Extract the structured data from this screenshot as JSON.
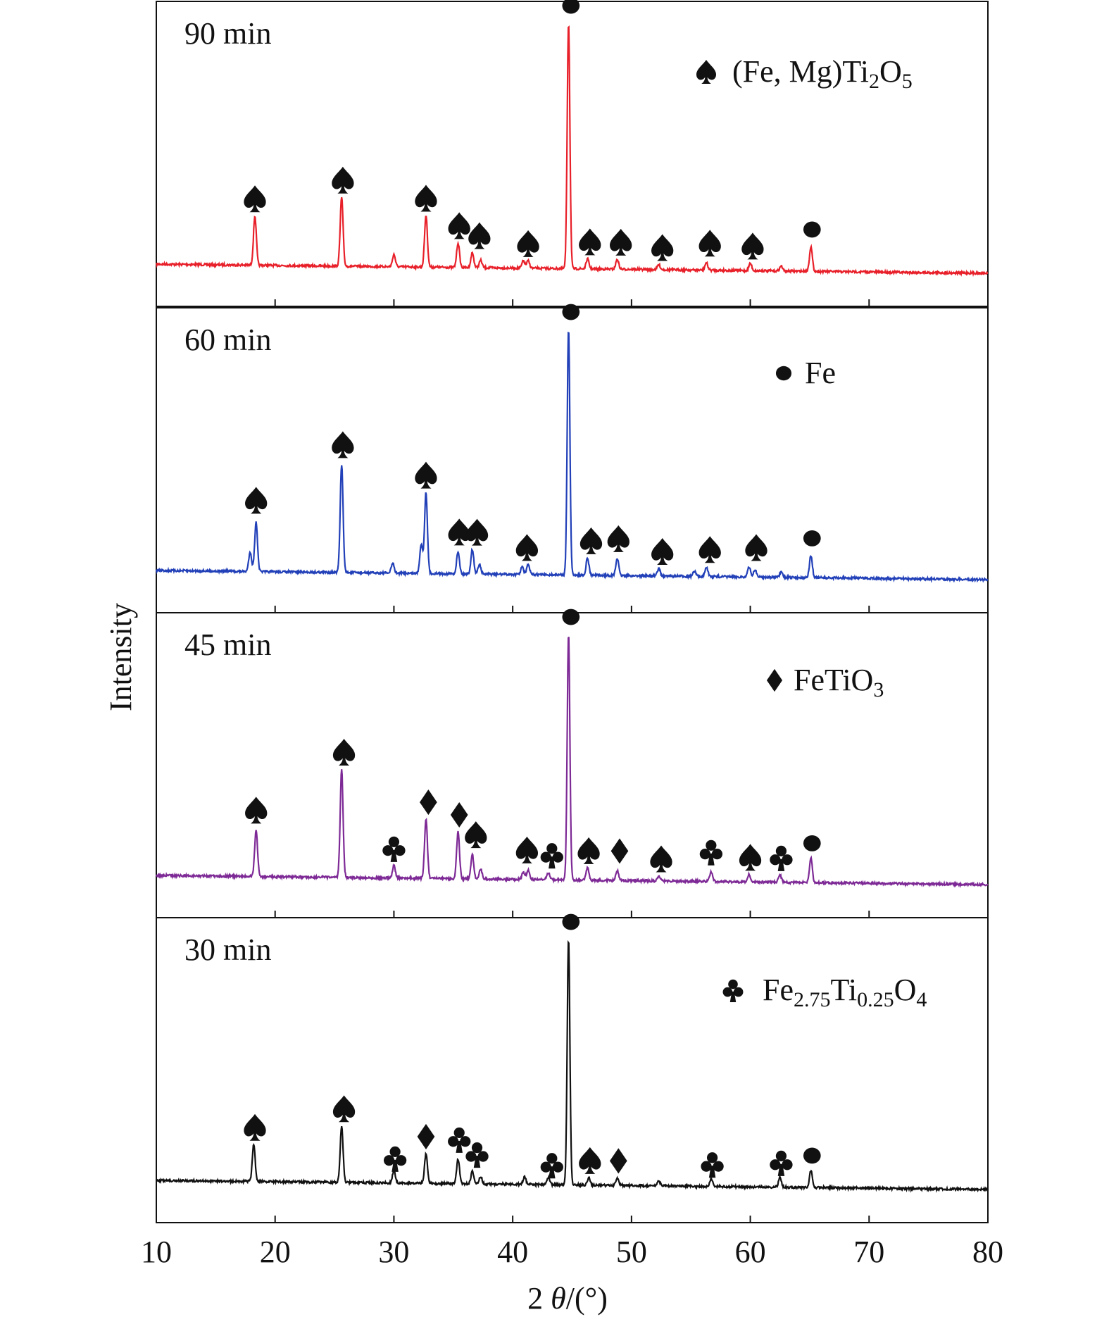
{
  "chart_data": {
    "type": "line",
    "xlabel": "2θ/(°)",
    "ylabel": "Intensity",
    "xlim": [
      10,
      80
    ],
    "xticks": [
      "10",
      "20",
      "30",
      "40",
      "50",
      "60",
      "70",
      "80"
    ],
    "grid": false,
    "panels": [
      {
        "label": "90 min",
        "color": "#e8202a",
        "peaks": [
          {
            "x": 18.3,
            "h": 0.2
          },
          {
            "x": 25.6,
            "h": 0.28
          },
          {
            "x": 30.0,
            "h": 0.05
          },
          {
            "x": 32.7,
            "h": 0.21
          },
          {
            "x": 35.4,
            "h": 0.1
          },
          {
            "x": 36.6,
            "h": 0.06
          },
          {
            "x": 37.3,
            "h": 0.03
          },
          {
            "x": 40.9,
            "h": 0.03
          },
          {
            "x": 41.3,
            "h": 0.03
          },
          {
            "x": 44.7,
            "h": 1.0
          },
          {
            "x": 46.3,
            "h": 0.04
          },
          {
            "x": 48.8,
            "h": 0.04
          },
          {
            "x": 52.3,
            "h": 0.02
          },
          {
            "x": 56.3,
            "h": 0.03
          },
          {
            "x": 60.0,
            "h": 0.03
          },
          {
            "x": 62.6,
            "h": 0.02
          },
          {
            "x": 65.1,
            "h": 0.1
          }
        ],
        "markers": [
          {
            "x": 18.3,
            "sym": "spade",
            "h": 0.27
          },
          {
            "x": 25.7,
            "sym": "spade",
            "h": 0.35
          },
          {
            "x": 32.7,
            "sym": "spade",
            "h": 0.28
          },
          {
            "x": 35.5,
            "sym": "spade",
            "h": 0.17
          },
          {
            "x": 37.2,
            "sym": "spade",
            "h": 0.13
          },
          {
            "x": 41.3,
            "sym": "spade",
            "h": 0.1
          },
          {
            "x": 44.9,
            "sym": "circle",
            "h": 1.07
          },
          {
            "x": 46.5,
            "sym": "spade",
            "h": 0.11
          },
          {
            "x": 49.1,
            "sym": "spade",
            "h": 0.11
          },
          {
            "x": 52.6,
            "sym": "spade",
            "h": 0.09
          },
          {
            "x": 56.6,
            "sym": "spade",
            "h": 0.11
          },
          {
            "x": 60.2,
            "sym": "spade",
            "h": 0.1
          },
          {
            "x": 65.2,
            "sym": "circle",
            "h": 0.17
          }
        ]
      },
      {
        "label": "60 min",
        "color": "#2240b8",
        "peaks": [
          {
            "x": 17.9,
            "h": 0.08
          },
          {
            "x": 18.4,
            "h": 0.2
          },
          {
            "x": 25.6,
            "h": 0.44
          },
          {
            "x": 29.9,
            "h": 0.04
          },
          {
            "x": 32.3,
            "h": 0.12
          },
          {
            "x": 32.7,
            "h": 0.33
          },
          {
            "x": 35.4,
            "h": 0.09
          },
          {
            "x": 36.6,
            "h": 0.1
          },
          {
            "x": 37.2,
            "h": 0.04
          },
          {
            "x": 40.8,
            "h": 0.03
          },
          {
            "x": 41.3,
            "h": 0.04
          },
          {
            "x": 44.7,
            "h": 1.0
          },
          {
            "x": 46.3,
            "h": 0.07
          },
          {
            "x": 48.8,
            "h": 0.07
          },
          {
            "x": 52.3,
            "h": 0.03
          },
          {
            "x": 55.3,
            "h": 0.02
          },
          {
            "x": 56.3,
            "h": 0.04
          },
          {
            "x": 59.9,
            "h": 0.04
          },
          {
            "x": 60.4,
            "h": 0.03
          },
          {
            "x": 62.6,
            "h": 0.02
          },
          {
            "x": 65.1,
            "h": 0.09
          }
        ],
        "markers": [
          {
            "x": 18.4,
            "sym": "spade",
            "h": 0.29
          },
          {
            "x": 25.7,
            "sym": "spade",
            "h": 0.52
          },
          {
            "x": 32.7,
            "sym": "spade",
            "h": 0.4
          },
          {
            "x": 35.5,
            "sym": "spade",
            "h": 0.17
          },
          {
            "x": 37.0,
            "sym": "spade",
            "h": 0.17
          },
          {
            "x": 41.2,
            "sym": "spade",
            "h": 0.11
          },
          {
            "x": 44.9,
            "sym": "circle",
            "h": 1.07
          },
          {
            "x": 46.6,
            "sym": "spade",
            "h": 0.14
          },
          {
            "x": 48.9,
            "sym": "spade",
            "h": 0.15
          },
          {
            "x": 52.6,
            "sym": "spade",
            "h": 0.1
          },
          {
            "x": 56.6,
            "sym": "spade",
            "h": 0.11
          },
          {
            "x": 60.5,
            "sym": "spade",
            "h": 0.12
          },
          {
            "x": 65.2,
            "sym": "circle",
            "h": 0.16
          }
        ]
      },
      {
        "label": "45 min",
        "color": "#7e2a96",
        "peaks": [
          {
            "x": 18.4,
            "h": 0.19
          },
          {
            "x": 25.6,
            "h": 0.44
          },
          {
            "x": 30.0,
            "h": 0.05
          },
          {
            "x": 32.7,
            "h": 0.24
          },
          {
            "x": 35.4,
            "h": 0.19
          },
          {
            "x": 36.6,
            "h": 0.1
          },
          {
            "x": 37.3,
            "h": 0.04
          },
          {
            "x": 40.9,
            "h": 0.03
          },
          {
            "x": 41.3,
            "h": 0.04
          },
          {
            "x": 43.0,
            "h": 0.03
          },
          {
            "x": 44.7,
            "h": 1.0
          },
          {
            "x": 46.3,
            "h": 0.05
          },
          {
            "x": 48.8,
            "h": 0.04
          },
          {
            "x": 52.3,
            "h": 0.02
          },
          {
            "x": 56.7,
            "h": 0.04
          },
          {
            "x": 59.9,
            "h": 0.03
          },
          {
            "x": 62.5,
            "h": 0.03
          },
          {
            "x": 65.1,
            "h": 0.1
          }
        ],
        "markers": [
          {
            "x": 18.4,
            "sym": "spade",
            "h": 0.27
          },
          {
            "x": 25.8,
            "sym": "spade",
            "h": 0.51
          },
          {
            "x": 30.0,
            "sym": "club",
            "h": 0.12
          },
          {
            "x": 32.9,
            "sym": "diamond",
            "h": 0.31
          },
          {
            "x": 35.5,
            "sym": "diamond",
            "h": 0.26
          },
          {
            "x": 36.9,
            "sym": "spade",
            "h": 0.18
          },
          {
            "x": 41.2,
            "sym": "spade",
            "h": 0.12
          },
          {
            "x": 43.3,
            "sym": "club",
            "h": 0.1
          },
          {
            "x": 44.9,
            "sym": "circle",
            "h": 1.07
          },
          {
            "x": 46.4,
            "sym": "spade",
            "h": 0.12
          },
          {
            "x": 49.0,
            "sym": "diamond",
            "h": 0.12
          },
          {
            "x": 52.5,
            "sym": "spade",
            "h": 0.09
          },
          {
            "x": 56.7,
            "sym": "club",
            "h": 0.12
          },
          {
            "x": 60.0,
            "sym": "spade",
            "h": 0.1
          },
          {
            "x": 62.6,
            "sym": "club",
            "h": 0.1
          },
          {
            "x": 65.2,
            "sym": "circle",
            "h": 0.16
          }
        ]
      },
      {
        "label": "30 min",
        "color": "#111111",
        "peaks": [
          {
            "x": 18.2,
            "h": 0.15
          },
          {
            "x": 25.6,
            "h": 0.23
          },
          {
            "x": 30.0,
            "h": 0.05
          },
          {
            "x": 32.7,
            "h": 0.12
          },
          {
            "x": 35.4,
            "h": 0.1
          },
          {
            "x": 36.6,
            "h": 0.05
          },
          {
            "x": 37.3,
            "h": 0.03
          },
          {
            "x": 41.0,
            "h": 0.03
          },
          {
            "x": 43.0,
            "h": 0.03
          },
          {
            "x": 44.7,
            "h": 1.0
          },
          {
            "x": 46.4,
            "h": 0.03
          },
          {
            "x": 48.8,
            "h": 0.03
          },
          {
            "x": 52.3,
            "h": 0.02
          },
          {
            "x": 56.7,
            "h": 0.03
          },
          {
            "x": 62.5,
            "h": 0.04
          },
          {
            "x": 65.1,
            "h": 0.07
          }
        ],
        "markers": [
          {
            "x": 18.3,
            "sym": "spade",
            "h": 0.22
          },
          {
            "x": 25.8,
            "sym": "spade",
            "h": 0.3
          },
          {
            "x": 30.1,
            "sym": "club",
            "h": 0.1
          },
          {
            "x": 32.7,
            "sym": "diamond",
            "h": 0.19
          },
          {
            "x": 35.5,
            "sym": "club",
            "h": 0.18
          },
          {
            "x": 37.0,
            "sym": "club",
            "h": 0.12
          },
          {
            "x": 43.3,
            "sym": "club",
            "h": 0.08
          },
          {
            "x": 44.9,
            "sym": "circle",
            "h": 1.07
          },
          {
            "x": 46.5,
            "sym": "spade",
            "h": 0.1
          },
          {
            "x": 48.9,
            "sym": "diamond",
            "h": 0.1
          },
          {
            "x": 56.8,
            "sym": "club",
            "h": 0.09
          },
          {
            "x": 62.6,
            "sym": "club",
            "h": 0.1
          },
          {
            "x": 65.2,
            "sym": "circle",
            "h": 0.13
          }
        ]
      }
    ],
    "legend": [
      {
        "symbol": "spade",
        "text": "(Fe, Mg)Ti",
        "sub1": "2",
        "mid": "O",
        "sub2": "5",
        "tail": ""
      },
      {
        "symbol": "circle",
        "text": "Fe",
        "sub1": "",
        "mid": "",
        "sub2": "",
        "tail": ""
      },
      {
        "symbol": "diamond",
        "text": "FeTiO",
        "sub1": "3",
        "mid": "",
        "sub2": "",
        "tail": ""
      },
      {
        "symbol": "club",
        "text": "Fe",
        "sub1": "2.75",
        "mid": "Ti",
        "sub2": "0.25",
        "tail": "O",
        "sub3": "4"
      }
    ]
  }
}
